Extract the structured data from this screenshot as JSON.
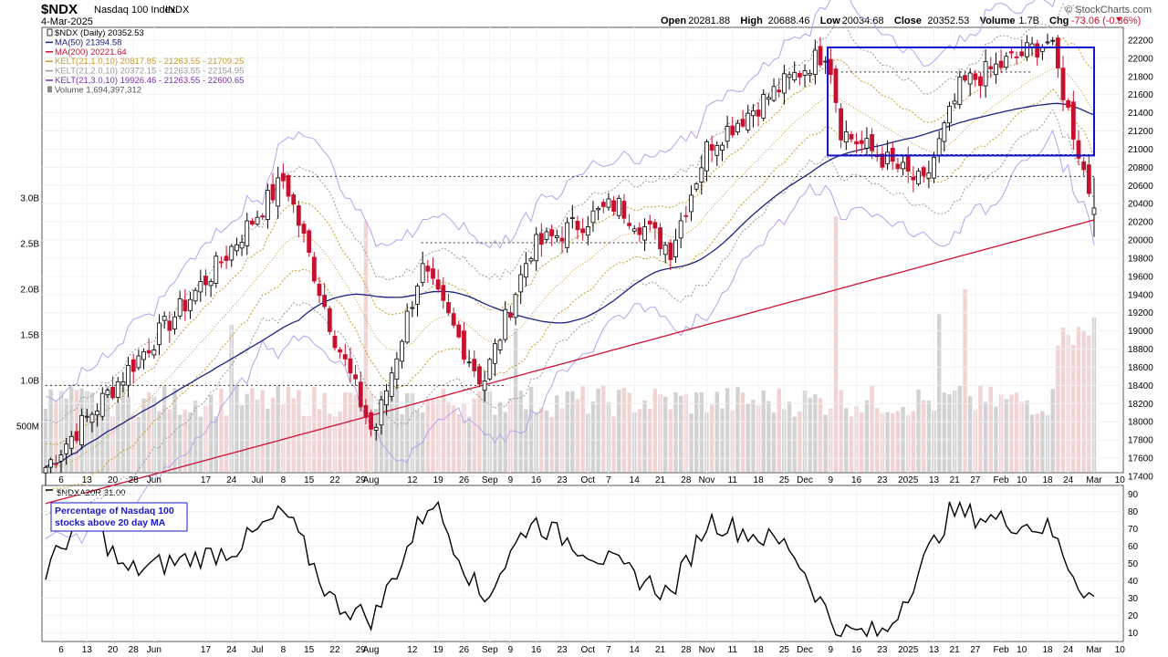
{
  "header": {
    "symbol": "$NDX",
    "name": "Nasdaq 100 Index",
    "exchange": "INDX",
    "date": "4-Mar-2025",
    "ohlc": [
      {
        "label": "Open",
        "value": "20281.88"
      },
      {
        "label": "High",
        "value": "20688.46"
      },
      {
        "label": "Low",
        "value": "20034.68"
      },
      {
        "label": "Close",
        "value": "20352.53"
      },
      {
        "label": "Volume",
        "value": "1.7B"
      },
      {
        "label": "Chg",
        "value": "-73.06 (-0.36%)"
      }
    ],
    "credit": "© StockCharts.com"
  },
  "legend": [
    {
      "text": "$NDX (Daily) 20352.53",
      "color": "#000000",
      "icon": "candle-swatch-icon"
    },
    {
      "text": "MA(50) 21394.58",
      "color": "#1a237e",
      "icon": "line-swatch-icon"
    },
    {
      "text": "MA(200) 20221.64",
      "color": "#cc1133",
      "icon": "line-swatch-icon"
    },
    {
      "text": "KELT(21,1.0,10) 20817.85 - 21263.55 - 21709.25",
      "color": "#c89a2c",
      "icon": "line-swatch-icon"
    },
    {
      "text": "KELT(21,2.0,10) 20372.15 - 21263.55 - 22154.95",
      "color": "#999999",
      "icon": "line-swatch-icon"
    },
    {
      "text": "KELT(21,3.0,10) 19926.46 - 21263.55 - 22600.65",
      "color": "#7b2fb5",
      "icon": "line-swatch-icon"
    },
    {
      "text": "Volume 1,694,397,312",
      "color": "#555555",
      "icon": "bar-swatch-icon"
    }
  ],
  "x_labels": [
    {
      "i": 3,
      "t": "6"
    },
    {
      "i": 8,
      "t": "13"
    },
    {
      "i": 13,
      "t": "20"
    },
    {
      "i": 17,
      "t": "28"
    },
    {
      "i": 21,
      "t": "Jun"
    },
    {
      "i": 31,
      "t": "17"
    },
    {
      "i": 36,
      "t": "24"
    },
    {
      "i": 41,
      "t": "Jul"
    },
    {
      "i": 46,
      "t": "8"
    },
    {
      "i": 51,
      "t": "15"
    },
    {
      "i": 56,
      "t": "22"
    },
    {
      "i": 61,
      "t": "29"
    },
    {
      "i": 63,
      "t": "Aug"
    },
    {
      "i": 71,
      "t": "12"
    },
    {
      "i": 76,
      "t": "19"
    },
    {
      "i": 81,
      "t": "26"
    },
    {
      "i": 86,
      "t": "Sep"
    },
    {
      "i": 90,
      "t": "9"
    },
    {
      "i": 95,
      "t": "16"
    },
    {
      "i": 100,
      "t": "23"
    },
    {
      "i": 105,
      "t": "Oct"
    },
    {
      "i": 109,
      "t": "7"
    },
    {
      "i": 114,
      "t": "14"
    },
    {
      "i": 119,
      "t": "21"
    },
    {
      "i": 124,
      "t": "28"
    },
    {
      "i": 128,
      "t": "Nov"
    },
    {
      "i": 133,
      "t": "11"
    },
    {
      "i": 138,
      "t": "18"
    },
    {
      "i": 143,
      "t": "25"
    },
    {
      "i": 147,
      "t": "Dec"
    },
    {
      "i": 152,
      "t": "9"
    },
    {
      "i": 157,
      "t": "16"
    },
    {
      "i": 162,
      "t": "23"
    },
    {
      "i": 167,
      "t": "2025"
    },
    {
      "i": 172,
      "t": "13"
    },
    {
      "i": 176,
      "t": "21"
    },
    {
      "i": 180,
      "t": "27"
    },
    {
      "i": 185,
      "t": "Feb"
    },
    {
      "i": 189,
      "t": "10"
    },
    {
      "i": 194,
      "t": "18"
    },
    {
      "i": 198,
      "t": "24"
    },
    {
      "i": 203,
      "t": "Mar"
    },
    {
      "i": 208,
      "t": "10"
    }
  ],
  "price_ticks": [
    17400,
    17600,
    17800,
    18000,
    18200,
    18400,
    18600,
    18800,
    19000,
    19200,
    19400,
    19600,
    19800,
    20000,
    20200,
    20400,
    20600,
    20800,
    21000,
    21200,
    21400,
    21600,
    21800,
    22000,
    22200
  ],
  "volume_ticks": [
    {
      "v": 3.0,
      "t": "3.0B"
    },
    {
      "v": 2.5,
      "t": "2.5B"
    },
    {
      "v": 2.0,
      "t": "2.0B"
    },
    {
      "v": 1.5,
      "t": "1.5B"
    },
    {
      "v": 1.0,
      "t": "1.0B"
    },
    {
      "v": 0.5,
      "t": "500M"
    }
  ],
  "indicator": {
    "label": "$NDXA20R 31.00",
    "note_lines": [
      "Percentage of Nasdaq 100",
      "stocks above 20 day MA"
    ],
    "ticks": [
      10,
      20,
      30,
      40,
      50,
      60,
      70,
      80,
      90
    ],
    "lines": [
      30,
      70
    ]
  },
  "colors": {
    "up": "#ffffff",
    "down": "#c8102e",
    "ma50": "#1a237e",
    "ma200": "#cc1133",
    "kelt1": "#c89a2c",
    "kelt2": "#999999",
    "kelt3": "#b8a0ec",
    "vol_up": "#d2d2d2",
    "vol_down": "#f1d3d4",
    "box": "#1010cc"
  },
  "chart_data": [
    {
      "type": "candlestick",
      "title": "$NDX Nasdaq 100 Index INDX",
      "period": "Daily",
      "x_range": [
        "2024-05-01",
        "2025-03-04"
      ],
      "y_range": [
        17400,
        22300
      ],
      "keypoints": [
        {
          "date": "2024-05-01",
          "close": 17500
        },
        {
          "date": "2024-05-28",
          "close": 18700
        },
        {
          "date": "2024-06-20",
          "close": 19700
        },
        {
          "date": "2024-07-10",
          "close": 20680
        },
        {
          "date": "2024-07-24",
          "close": 19000
        },
        {
          "date": "2024-08-05",
          "close": 17850
        },
        {
          "date": "2024-08-19",
          "close": 19700
        },
        {
          "date": "2024-09-06",
          "close": 18420
        },
        {
          "date": "2024-09-20",
          "close": 19900
        },
        {
          "date": "2024-10-15",
          "close": 20400
        },
        {
          "date": "2024-10-31",
          "close": 19900
        },
        {
          "date": "2024-11-11",
          "close": 21050
        },
        {
          "date": "2024-12-16",
          "close": 22100
        },
        {
          "date": "2024-12-20",
          "close": 21200
        },
        {
          "date": "2025-01-13",
          "close": 20600
        },
        {
          "date": "2025-01-24",
          "close": 21700
        },
        {
          "date": "2025-02-19",
          "close": 22200
        },
        {
          "date": "2025-02-28",
          "close": 20900
        },
        {
          "date": "2025-03-04",
          "close": 20352.53
        }
      ],
      "last_bar": {
        "open": 20281.88,
        "high": 20688.46,
        "low": 20034.68,
        "close": 20352.53,
        "volume": "1.7B"
      },
      "overlays": [
        {
          "name": "MA(50)",
          "value": 21394.58
        },
        {
          "name": "MA(200)",
          "value": 20221.64
        },
        {
          "name": "KELT(21,1.0,10)",
          "values": [
            20817.85,
            21263.55,
            21709.25
          ]
        },
        {
          "name": "KELT(21,2.0,10)",
          "values": [
            20372.15,
            21263.55,
            22154.95
          ]
        },
        {
          "name": "KELT(21,3.0,10)",
          "values": [
            19926.46,
            21263.55,
            22600.65
          ]
        }
      ],
      "volume_last": 1694397312,
      "annotations": [
        {
          "kind": "box",
          "from": "2024-12-16",
          "to": "2025-03-04",
          "y_range": [
            20930,
            22120
          ]
        },
        {
          "kind": "hline",
          "y": 18400,
          "from": "2024-05-01",
          "to": "2024-09-13"
        },
        {
          "kind": "hline",
          "y": 20700,
          "from": "2024-07-10",
          "to": "2025-03-04"
        },
        {
          "kind": "hline",
          "y": 19970,
          "from": "2024-08-19",
          "to": "2024-10-31"
        },
        {
          "kind": "hline",
          "y": 21850,
          "from": "2024-12-20",
          "to": "2025-02-14"
        },
        {
          "kind": "hline",
          "y": 20940,
          "from": "2024-12-20",
          "to": "2025-03-04"
        }
      ]
    },
    {
      "type": "line",
      "title": "$NDXA20R 31.00",
      "y_range": [
        5,
        95
      ],
      "reference_lines": [
        30,
        70
      ],
      "keypoints": [
        {
          "date": "2024-05-01",
          "value": 45
        },
        {
          "date": "2024-05-13",
          "value": 82
        },
        {
          "date": "2024-05-24",
          "value": 45
        },
        {
          "date": "2024-06-25",
          "value": 58
        },
        {
          "date": "2024-07-10",
          "value": 80
        },
        {
          "date": "2024-07-24",
          "value": 28
        },
        {
          "date": "2024-08-05",
          "value": 18
        },
        {
          "date": "2024-08-22",
          "value": 88
        },
        {
          "date": "2024-09-06",
          "value": 28
        },
        {
          "date": "2024-09-20",
          "value": 75
        },
        {
          "date": "2024-10-31",
          "value": 32
        },
        {
          "date": "2024-11-11",
          "value": 75
        },
        {
          "date": "2024-12-05",
          "value": 60
        },
        {
          "date": "2024-12-19",
          "value": 10
        },
        {
          "date": "2025-01-02",
          "value": 10
        },
        {
          "date": "2025-01-21",
          "value": 80
        },
        {
          "date": "2025-02-19",
          "value": 70
        },
        {
          "date": "2025-02-28",
          "value": 37
        },
        {
          "date": "2025-03-04",
          "value": 31
        }
      ]
    }
  ]
}
